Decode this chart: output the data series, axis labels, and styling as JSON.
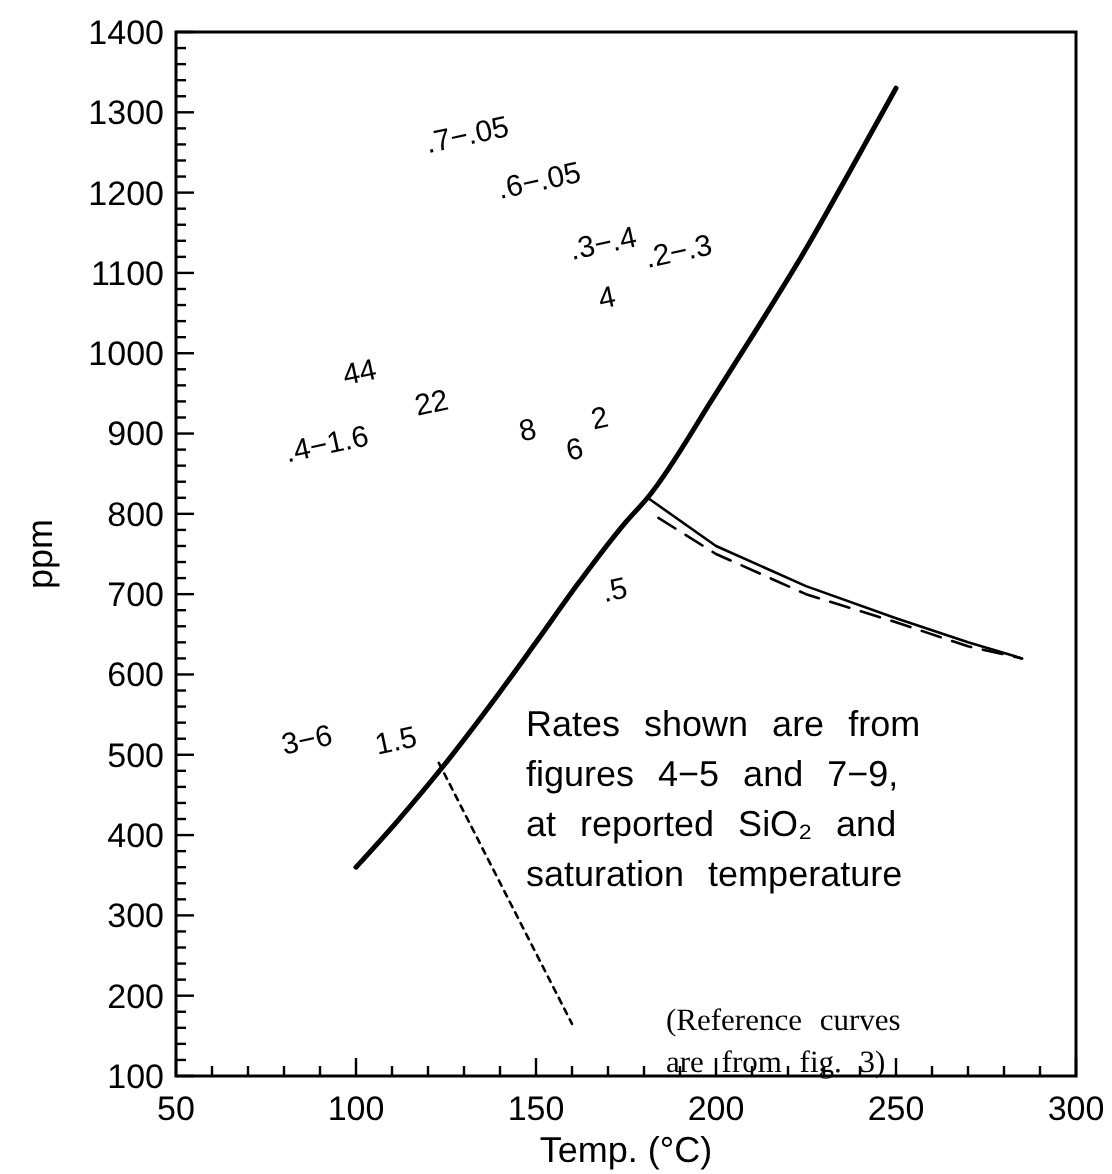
{
  "chart_data": {
    "type": "line",
    "xlabel": "Temp. (°C)",
    "ylabel": "ppm",
    "xlim": [
      50,
      300
    ],
    "ylim": [
      100,
      1400
    ],
    "xticks": [
      50,
      {
        "value": 60,
        "label": null
      },
      {
        "value": 70,
        "label": null
      },
      {
        "value": 80,
        "label": null
      },
      {
        "value": 90,
        "label": null
      },
      100,
      {
        "value": 110,
        "label": null
      },
      {
        "value": 120,
        "label": null
      },
      {
        "value": 130,
        "label": null
      },
      {
        "value": 140,
        "label": null
      },
      150,
      {
        "value": 160,
        "label": null
      },
      {
        "value": 170,
        "label": null
      },
      {
        "value": 180,
        "label": null
      },
      {
        "value": 190,
        "label": null
      },
      200,
      {
        "value": 210,
        "label": null
      },
      {
        "value": 220,
        "label": null
      },
      {
        "value": 230,
        "label": null
      },
      {
        "value": 240,
        "label": null
      },
      250,
      {
        "value": 260,
        "label": null
      },
      {
        "value": 270,
        "label": null
      },
      {
        "value": 280,
        "label": null
      },
      {
        "value": 290,
        "label": null
      },
      300
    ],
    "yticks": [
      100,
      {
        "value": 120,
        "label": null
      },
      {
        "value": 140,
        "label": null
      },
      {
        "value": 160,
        "label": null
      },
      {
        "value": 180,
        "label": null
      },
      200,
      {
        "value": 220,
        "label": null
      },
      {
        "value": 240,
        "label": null
      },
      {
        "value": 260,
        "label": null
      },
      {
        "value": 280,
        "label": null
      },
      300,
      {
        "value": 320,
        "label": null
      },
      {
        "value": 340,
        "label": null
      },
      {
        "value": 360,
        "label": null
      },
      {
        "value": 380,
        "label": null
      },
      400,
      {
        "value": 420,
        "label": null
      },
      {
        "value": 440,
        "label": null
      },
      {
        "value": 460,
        "label": null
      },
      {
        "value": 480,
        "label": null
      },
      500,
      {
        "value": 520,
        "label": null
      },
      {
        "value": 540,
        "label": null
      },
      {
        "value": 560,
        "label": null
      },
      {
        "value": 580,
        "label": null
      },
      600,
      {
        "value": 620,
        "label": null
      },
      {
        "value": 640,
        "label": null
      },
      {
        "value": 660,
        "label": null
      },
      {
        "value": 680,
        "label": null
      },
      700,
      {
        "value": 720,
        "label": null
      },
      {
        "value": 740,
        "label": null
      },
      {
        "value": 760,
        "label": null
      },
      {
        "value": 780,
        "label": null
      },
      800,
      {
        "value": 820,
        "label": null
      },
      {
        "value": 840,
        "label": null
      },
      {
        "value": 860,
        "label": null
      },
      {
        "value": 880,
        "label": null
      },
      900,
      {
        "value": 920,
        "label": null
      },
      {
        "value": 940,
        "label": null
      },
      {
        "value": 960,
        "label": null
      },
      {
        "value": 980,
        "label": null
      },
      1000,
      {
        "value": 1020,
        "label": null
      },
      {
        "value": 1040,
        "label": null
      },
      {
        "value": 1060,
        "label": null
      },
      {
        "value": 1080,
        "label": null
      },
      1100,
      {
        "value": 1120,
        "label": null
      },
      {
        "value": 1140,
        "label": null
      },
      {
        "value": 1160,
        "label": null
      },
      {
        "value": 1180,
        "label": null
      },
      1200,
      {
        "value": 1220,
        "label": null
      },
      {
        "value": 1240,
        "label": null
      },
      {
        "value": 1260,
        "label": null
      },
      {
        "value": 1280,
        "label": null
      },
      1300,
      {
        "value": 1320,
        "label": null
      },
      {
        "value": 1340,
        "label": null
      },
      {
        "value": 1360,
        "label": null
      },
      {
        "value": 1380,
        "label": null
      },
      1400
    ],
    "grid": false,
    "series": [
      {
        "color": "#000000",
        "line_style": "solid",
        "x": [
          100,
          112,
          125,
          137,
          150,
          162,
          175,
          181,
          200,
          212,
          225,
          237,
          250
        ],
        "values": [
          360,
          420,
          490,
          560,
          640,
          715,
          790,
          820,
          950,
          1035,
          1130,
          1225,
          1330
        ]
      },
      {
        "color": "#000000",
        "line_style": "solid",
        "x": [
          181,
          200,
          225,
          250,
          270,
          285
        ],
        "values": [
          820,
          760,
          710,
          670,
          640,
          620
        ]
      },
      {
        "color": "#000000",
        "line_style": "dashed",
        "x": [
          184,
          200,
          225,
          250,
          270,
          285
        ],
        "values": [
          795,
          750,
          700,
          665,
          635,
          620
        ]
      },
      {
        "color": "#000000",
        "line_style": "dotted",
        "x": [
          123,
          160
        ],
        "values": [
          490,
          165
        ]
      }
    ],
    "annotations": [
      ".7−.05",
      ".6−.05",
      ".3−.4",
      ".2−.3",
      "4",
      "44",
      "22",
      ".4−1.6",
      "8",
      "6",
      "2",
      ".5",
      "3−6",
      "1.5",
      "Rates shown are from\nfigures 4−5 and 7−9,\nat reported SiO₂ and\nsaturation temperature",
      "(Reference curves\nare from fig. 3)"
    ]
  }
}
